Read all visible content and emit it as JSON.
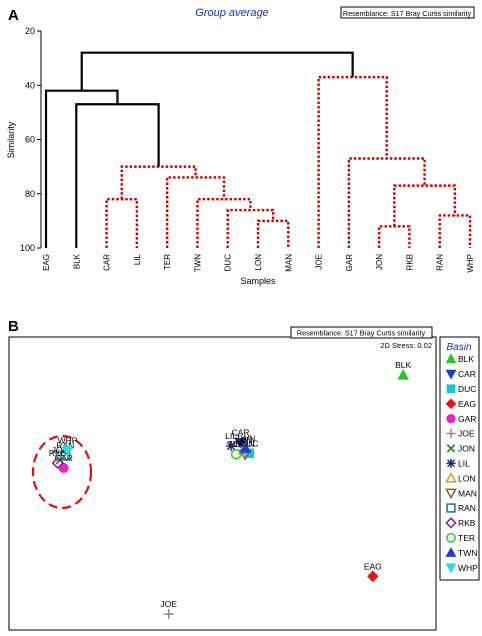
{
  "chart_data": [
    {
      "type": "dendrogram",
      "panel_label": "A",
      "title": "Group average",
      "resemblance": "Resemblance: S17 Bray Curtis similarity",
      "ylabel": "Similarity",
      "xlabel": "Samples",
      "ylim": [
        20,
        100
      ],
      "y_ticks": [
        "20",
        "40",
        "60",
        "80",
        "100"
      ],
      "leaves": [
        "EAG",
        "BLK",
        "CAR",
        "LIL",
        "TER",
        "TWN",
        "DUC",
        "LON",
        "MAN",
        "JOE",
        "GAR",
        "JON",
        "RKB",
        "RAN",
        "WHP"
      ],
      "merges": [
        {
          "a": 7,
          "b": 8,
          "similarity": 90,
          "significant": false
        },
        {
          "a": 6,
          "b": 15,
          "similarity": 86,
          "significant": false
        },
        {
          "a": 11,
          "b": 12,
          "similarity": 92,
          "significant": false
        },
        {
          "a": 13,
          "b": 14,
          "similarity": 88,
          "significant": false
        },
        {
          "a": 5,
          "b": 16,
          "similarity": 82,
          "significant": false
        },
        {
          "a": 2,
          "b": 3,
          "similarity": 82,
          "significant": false
        },
        {
          "a": 17,
          "b": 18,
          "similarity": 77,
          "significant": false
        },
        {
          "a": 4,
          "b": 19,
          "similarity": 74,
          "significant": false
        },
        {
          "a": 20,
          "b": 22,
          "similarity": 70,
          "significant": false
        },
        {
          "a": 10,
          "b": 21,
          "similarity": 67,
          "significant": false
        },
        {
          "a": 1,
          "b": 23,
          "similarity": 47,
          "significant": true
        },
        {
          "a": 0,
          "b": 25,
          "similarity": 42,
          "significant": true
        },
        {
          "a": 9,
          "b": 24,
          "similarity": 37,
          "significant": false
        },
        {
          "a": 26,
          "b": 27,
          "similarity": 28,
          "significant": true
        }
      ]
    },
    {
      "type": "scatter",
      "panel_label": "B",
      "resemblance": "Resemblance: S17 Bray Curtis similarity",
      "stress": "2D Stress: 0.02",
      "legend_title": "Basin",
      "xlim": [
        0,
        100
      ],
      "ylim": [
        0,
        100
      ],
      "series": [
        {
          "name": "BLK",
          "x": 92.3,
          "y": 87.0,
          "color": "#22cc22",
          "symbol": "triangle-up",
          "label": "BLK"
        },
        {
          "name": "CAR",
          "x": 54.2,
          "y": 64.0,
          "color": "#1a3fd6",
          "symbol": "triangle-down",
          "label": "CAR"
        },
        {
          "name": "DUC",
          "x": 56.3,
          "y": 60.3,
          "color": "#12c6d6",
          "symbol": "square",
          "label": "DUC"
        },
        {
          "name": "EAG",
          "x": 85.2,
          "y": 18.3,
          "color": "#ee1111",
          "symbol": "diamond",
          "label": "EAG"
        },
        {
          "name": "GAR",
          "x": 12.8,
          "y": 55.3,
          "color": "#ee22cc",
          "symbol": "circle",
          "label": "GAR"
        },
        {
          "name": "JOE",
          "x": 37.4,
          "y": 5.4,
          "color": "#888888",
          "symbol": "plus",
          "label": "JOE"
        },
        {
          "name": "JON",
          "x": 12.0,
          "y": 58.0,
          "color": "#1a8a1a",
          "symbol": "x",
          "label": "JON"
        },
        {
          "name": "LIL",
          "x": 52.0,
          "y": 62.8,
          "color": "#1a2a8a",
          "symbol": "asterisk",
          "label": "LIL"
        },
        {
          "name": "LON",
          "x": 55.0,
          "y": 61.5,
          "color": "#e09a1a",
          "symbol": "triangle-up-open",
          "label": "LON"
        },
        {
          "name": "MAN",
          "x": 55.3,
          "y": 60.0,
          "color": "#7a6a1a",
          "symbol": "triangle-down-open",
          "label": "MAN"
        },
        {
          "name": "RAN",
          "x": 13.2,
          "y": 59.5,
          "color": "#0a7a8a",
          "symbol": "square-open",
          "label": "RAN"
        },
        {
          "name": "RKB",
          "x": 11.4,
          "y": 57.0,
          "color": "#8a1a8a",
          "symbol": "diamond-open",
          "label": "RKB"
        },
        {
          "name": "TER",
          "x": 53.2,
          "y": 60.0,
          "color": "#22cc22",
          "symbol": "circle-open",
          "label": "TER"
        },
        {
          "name": "TWN",
          "x": 55.4,
          "y": 62.0,
          "color": "#1a3fd6",
          "symbol": "triangle-up",
          "label": "TWN"
        },
        {
          "name": "WHP",
          "x": 13.7,
          "y": 61.2,
          "color": "#22dde6",
          "symbol": "triangle-down",
          "label": "WHP"
        }
      ]
    }
  ],
  "colors": {
    "title": "#1a2fbf",
    "significant_line": "#000000",
    "nonsignificant_line": "#cc0000",
    "ellipse": "#e01010"
  }
}
